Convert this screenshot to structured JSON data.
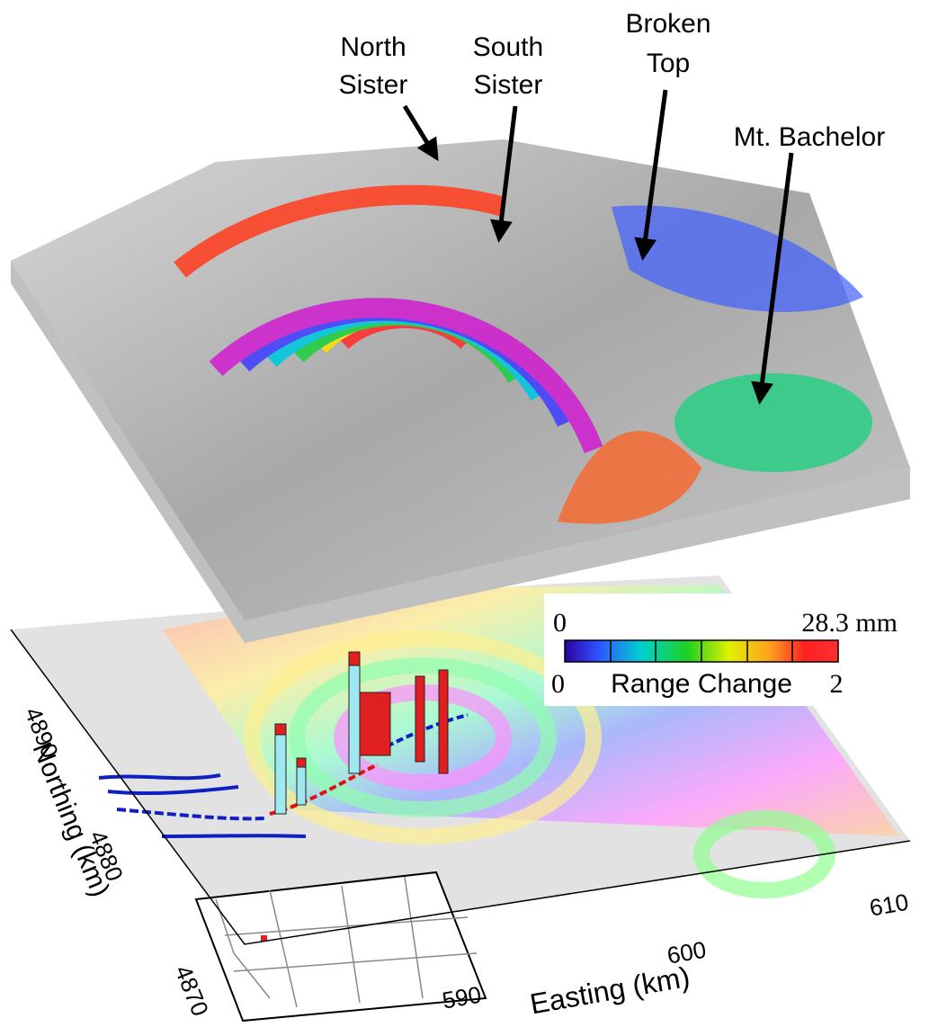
{
  "annotations": [
    {
      "lines": [
        "North",
        "Sister"
      ]
    },
    {
      "lines": [
        "South",
        "Sister"
      ]
    },
    {
      "lines": [
        "Broken",
        "Top"
      ]
    },
    {
      "lines": [
        "Mt. Bachelor"
      ]
    }
  ],
  "axes": {
    "x": {
      "title": "Easting (km)",
      "ticks": [
        590,
        600,
        610
      ]
    },
    "y": {
      "title": "Northing (km)",
      "ticks": [
        4870,
        4880,
        4890
      ]
    }
  },
  "colorbar": {
    "top_min": 0,
    "top_max": "28.3 mm",
    "bottom_min": 0,
    "bottom_max": 2,
    "label": "Range Change"
  }
}
